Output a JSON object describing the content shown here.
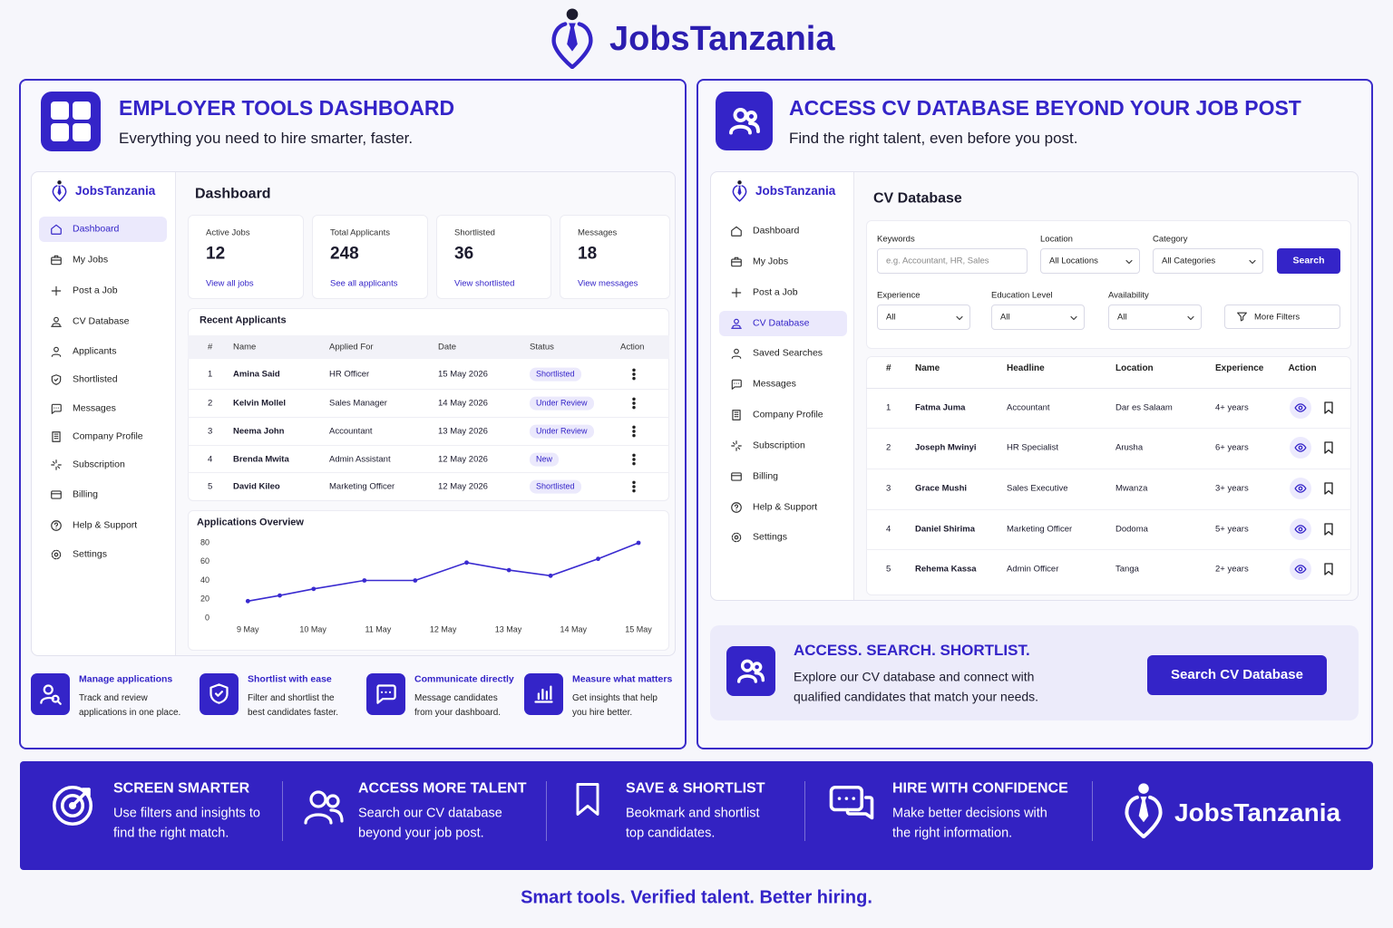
{
  "header": {
    "brand": "JobsTanzania"
  },
  "employer_panel": {
    "title": "EMPLOYER TOOLS DASHBOARD",
    "subtitle": "Everything you need to hire smarter, faster.",
    "sidebar": {
      "brand": "JobsTanzania",
      "nav": [
        "Dashboard",
        "My Jobs",
        "Post a Job",
        "CV Database",
        "Applicants",
        "Shortlisted",
        "Messages",
        "Company Profile",
        "Subscription",
        "Billing",
        "Help & Support",
        "Settings"
      ]
    },
    "dashboard_title": "Dashboard",
    "stats": [
      {
        "label": "Active Jobs",
        "value": 12,
        "link": "View all jobs"
      },
      {
        "label": "Total Applicants",
        "value": 248,
        "link": "See all applicants"
      },
      {
        "label": "Shortlisted",
        "value": 36,
        "link": "View shortlisted"
      },
      {
        "label": "Messages",
        "value": 18,
        "link": "View messages"
      }
    ],
    "recent_applicants": {
      "title": "Recent Applicants",
      "columns": [
        "#",
        "Name",
        "Applied For",
        "Date",
        "Status",
        "Action"
      ],
      "rows": [
        [
          "1",
          "Amina Said",
          "HR Officer",
          "15 May 2026",
          "Shortlisted"
        ],
        [
          "2",
          "Kelvin Mollel",
          "Sales Manager",
          "14 May 2026",
          "Under Review"
        ],
        [
          "3",
          "Neema John",
          "Accountant",
          "13 May 2026",
          "Under Review"
        ],
        [
          "4",
          "Brenda Mwita",
          "Admin Assistant",
          "12 May 2026",
          "New"
        ],
        [
          "5",
          "David Kileo",
          "Marketing Officer",
          "12 May 2026",
          "Shortlisted"
        ]
      ]
    },
    "features": [
      {
        "title": "Manage applications",
        "lines": [
          "Track and review",
          "applications in one place."
        ]
      },
      {
        "title": "Shortlist with ease",
        "lines": [
          "Filter and shortlist the",
          "best candidates faster."
        ]
      },
      {
        "title": "Communicate directly",
        "lines": [
          "Message candidates",
          "from your dashboard."
        ]
      },
      {
        "title": "Measure what matters",
        "lines": [
          "Get insights that help",
          "you hire better."
        ]
      }
    ]
  },
  "cv_panel": {
    "title": "ACCESS CV DATABASE BEYOND YOUR JOB POST",
    "subtitle": "Find the right talent, even before you post.",
    "sidebar": {
      "brand": "JobsTanzania",
      "nav": [
        "Dashboard",
        "My Jobs",
        "Post a Job",
        "CV Database",
        "Saved Searches",
        "Messages",
        "Company Profile",
        "Subscription",
        "Billing",
        "Help & Support",
        "Settings"
      ]
    },
    "cv_title": "CV Database",
    "filters": {
      "keywords": {
        "label": "Keywords",
        "placeholder": "e.g. Accountant, HR, Sales"
      },
      "location": {
        "label": "Location",
        "value": "All Locations"
      },
      "category": {
        "label": "Category",
        "value": "All Categories"
      },
      "search": "Search",
      "experience": {
        "label": "Experience",
        "value": "All"
      },
      "education": {
        "label": "Education Level",
        "value": "All"
      },
      "availability": {
        "label": "Availability",
        "value": "All"
      },
      "more": "More Filters"
    },
    "table": {
      "columns": [
        "#",
        "Name",
        "Headline",
        "Location",
        "Experience",
        "Action"
      ],
      "rows": [
        [
          "1",
          "Fatma Juma",
          "Accountant",
          "Dar es Salaam",
          "4+ years"
        ],
        [
          "2",
          "Joseph Mwinyi",
          "HR Specialist",
          "Arusha",
          "6+ years"
        ],
        [
          "3",
          "Grace Mushi",
          "Sales Executive",
          "Mwanza",
          "3+ years"
        ],
        [
          "4",
          "Daniel Shirima",
          "Marketing Officer",
          "Dodoma",
          "5+ years"
        ],
        [
          "5",
          "Rehema Kassa",
          "Admin Officer",
          "Tanga",
          "2+ years"
        ]
      ]
    },
    "cta": {
      "title": "ACCESS. SEARCH. SHORTLIST.",
      "lines": [
        "Explore our CV database and connect with",
        "qualified candidates that match your needs."
      ],
      "button": "Search CV Database"
    }
  },
  "banner": {
    "items": [
      {
        "title": "SCREEN SMARTER",
        "lines": [
          "Use filters and insights to",
          "find the right match."
        ]
      },
      {
        "title": "ACCESS MORE TALENT",
        "lines": [
          "Search our CV database",
          "beyond your job post."
        ]
      },
      {
        "title": "SAVE & SHORTLIST",
        "lines": [
          "Beokmark and shortlist",
          "top candidates."
        ]
      },
      {
        "title": "HIRE WITH CONFIDENCE",
        "lines": [
          "Make better decisions with",
          "the right information."
        ]
      }
    ],
    "brand": "JobsTanzania"
  },
  "tagline": "Smart tools. Verified talent. Better hiring.",
  "chart_data": {
    "type": "line",
    "title": "Applications Overview",
    "color": "#3a2bd0",
    "x": [
      9,
      9.49,
      10.01,
      10.79,
      11.57,
      12.36,
      13.01,
      13.65,
      14.38,
      15
    ],
    "values": [
      18,
      24,
      31,
      40,
      40,
      59,
      51,
      45,
      63,
      80
    ],
    "xlim": [
      8.55,
      15.25
    ],
    "xticks": [
      {
        "value": 9,
        "label": "9 May"
      },
      {
        "value": 10,
        "label": "10 May"
      },
      {
        "value": 11,
        "label": "11 May"
      },
      {
        "value": 12,
        "label": "12 May"
      },
      {
        "value": 13,
        "label": "13 May"
      },
      {
        "value": 14,
        "label": "14 May"
      },
      {
        "value": 15,
        "label": "15 May"
      }
    ],
    "ylim": [
      0,
      80
    ],
    "yticks": [
      0,
      20,
      40,
      60,
      80
    ],
    "grid": false
  }
}
